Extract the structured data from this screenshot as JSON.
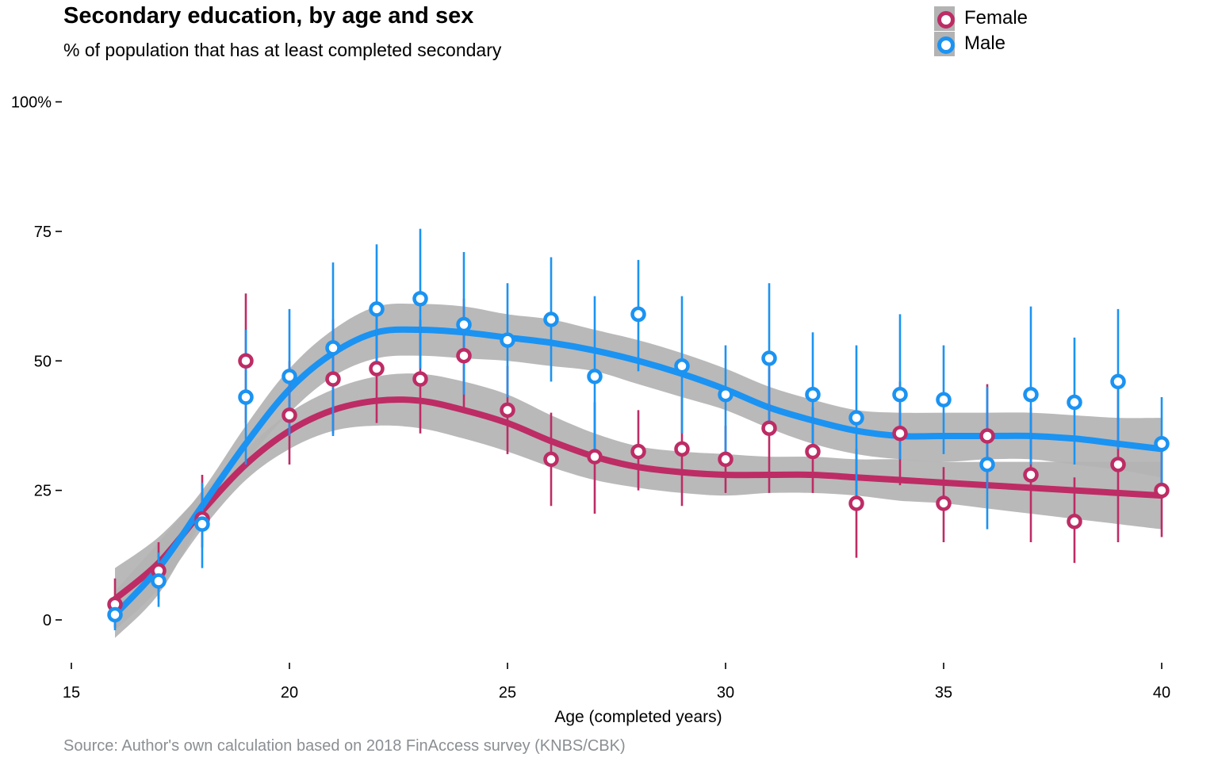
{
  "title": "Secondary education, by age and sex",
  "subtitle": "% of population that has at least completed secondary",
  "caption": "Source: Author's own calculation based on 2018 FinAccess survey (KNBS/CBK)",
  "legend": [
    {
      "name": "Female",
      "color": "#bd2c65"
    },
    {
      "name": "Male",
      "color": "#1b93f2"
    }
  ],
  "chart_data": {
    "type": "scatter",
    "title": "Secondary education, by age and sex",
    "subtitle": "% of population that has at least completed secondary",
    "xlabel": "Age (completed years)",
    "ylabel": "",
    "xlim": [
      15,
      40
    ],
    "ylim": [
      0,
      100
    ],
    "x_ticks": [
      15,
      20,
      25,
      30,
      35,
      40
    ],
    "x_tick_labels": [
      "15",
      "20",
      "25",
      "30",
      "35",
      "40"
    ],
    "y_ticks": [
      0,
      25,
      50,
      75,
      100
    ],
    "y_tick_labels": [
      "0",
      "25",
      "50",
      "75",
      "100%"
    ],
    "grid": false,
    "legend_position": "top-right",
    "band_color": "#b3b3b3",
    "series": [
      {
        "name": "Female",
        "color": "#bd2c65",
        "x": [
          16,
          17,
          18,
          19,
          20,
          21,
          22,
          23,
          24,
          25,
          26,
          27,
          28,
          29,
          30,
          31,
          32,
          33,
          34,
          35,
          36,
          37,
          38,
          39,
          40
        ],
        "values": [
          3,
          9.5,
          19.5,
          50,
          39.5,
          46.5,
          48.5,
          46.5,
          51,
          40.5,
          31,
          31.5,
          32.5,
          33,
          31,
          37,
          32.5,
          22.5,
          36,
          22.5,
          35.5,
          28,
          19,
          30,
          25
        ],
        "error_low": [
          -1.5,
          4,
          14,
          38,
          30,
          36,
          38,
          36,
          40,
          32,
          22,
          20.5,
          25,
          22,
          24.5,
          24.5,
          24.5,
          12,
          26,
          15,
          26,
          15,
          11,
          15,
          16
        ],
        "error_high": [
          8,
          15,
          28,
          63,
          50,
          58,
          59,
          58,
          62,
          49,
          40,
          42,
          40.5,
          43,
          37.5,
          49,
          41,
          33,
          46,
          29.5,
          45.5,
          41,
          27.5,
          45,
          34
        ],
        "smooth_x": [
          16,
          17,
          18,
          19,
          20,
          21,
          22,
          23,
          24,
          25,
          26,
          27,
          28,
          29,
          30,
          31,
          32,
          33,
          34,
          35,
          36,
          37,
          38,
          39,
          40
        ],
        "smooth_y": [
          4,
          11,
          21,
          30,
          36.5,
          40.5,
          42.3,
          42.3,
          40.5,
          38,
          34.5,
          31.5,
          29.5,
          28.5,
          28,
          28,
          28,
          27.5,
          27,
          26.5,
          26,
          25.5,
          25,
          24.5,
          24
        ],
        "smooth_low": [
          -2,
          6,
          17.5,
          27,
          33,
          36.5,
          37.5,
          37,
          35,
          32.5,
          29.5,
          27,
          25.5,
          24.5,
          24,
          24.5,
          24.5,
          24,
          23,
          22.5,
          21.5,
          20.5,
          19.5,
          18.5,
          17.5
        ],
        "smooth_high": [
          10,
          16,
          24.5,
          33,
          40,
          44.5,
          47,
          47.5,
          46,
          43.5,
          39.5,
          36,
          33.5,
          32.5,
          32,
          31.5,
          31.5,
          31,
          31,
          30.5,
          30.5,
          30.5,
          30.5,
          30.5,
          30.5
        ]
      },
      {
        "name": "Male",
        "color": "#1b93f2",
        "x": [
          16,
          17,
          18,
          19,
          20,
          21,
          22,
          23,
          24,
          25,
          26,
          27,
          28,
          29,
          30,
          31,
          32,
          33,
          34,
          35,
          36,
          37,
          38,
          39,
          40
        ],
        "values": [
          1,
          7.5,
          18.5,
          43,
          47,
          52.5,
          60,
          62,
          57,
          54,
          58,
          47,
          59,
          49,
          43.5,
          50.5,
          43.5,
          39,
          43.5,
          42.5,
          30,
          43.5,
          42,
          46,
          34
        ],
        "error_low": [
          -2,
          2.5,
          10,
          30,
          35.5,
          35.5,
          47.5,
          48.5,
          43.5,
          43,
          46,
          32,
          48,
          36,
          32,
          36,
          32,
          24,
          31,
          32,
          17.5,
          30,
          30,
          33,
          26
        ],
        "error_high": [
          4,
          13,
          26.5,
          56,
          60,
          69,
          72.5,
          75.5,
          71,
          65,
          70,
          62.5,
          69.5,
          62.5,
          53,
          65,
          55.5,
          53,
          59,
          53,
          45,
          60.5,
          54.5,
          60,
          43
        ],
        "smooth_x": [
          16,
          17,
          18,
          19,
          20,
          21,
          22,
          23,
          24,
          25,
          26,
          27,
          28,
          29,
          30,
          31,
          32,
          33,
          34,
          35,
          36,
          37,
          38,
          39,
          40
        ],
        "smooth_y": [
          1,
          10,
          22,
          34,
          44.5,
          51.5,
          55.5,
          56,
          55.5,
          54.5,
          53.5,
          52,
          50,
          47.5,
          44.5,
          41,
          38.5,
          36.5,
          35.5,
          35.5,
          35.5,
          35.5,
          35,
          34,
          33
        ],
        "smooth_low": [
          -3.5,
          5,
          19,
          30.5,
          40,
          47,
          50.5,
          51,
          50.5,
          50,
          49,
          48,
          45.5,
          43,
          40.5,
          37,
          34,
          32,
          31,
          30.5,
          31,
          31,
          30,
          29,
          27.5
        ],
        "smooth_high": [
          5.5,
          15,
          25,
          37.5,
          48.5,
          56,
          60.5,
          61,
          60.5,
          59,
          58,
          56,
          54,
          51.5,
          48.5,
          45,
          42.5,
          40.5,
          40,
          40,
          40,
          40,
          39.5,
          39,
          39
        ]
      }
    ]
  }
}
